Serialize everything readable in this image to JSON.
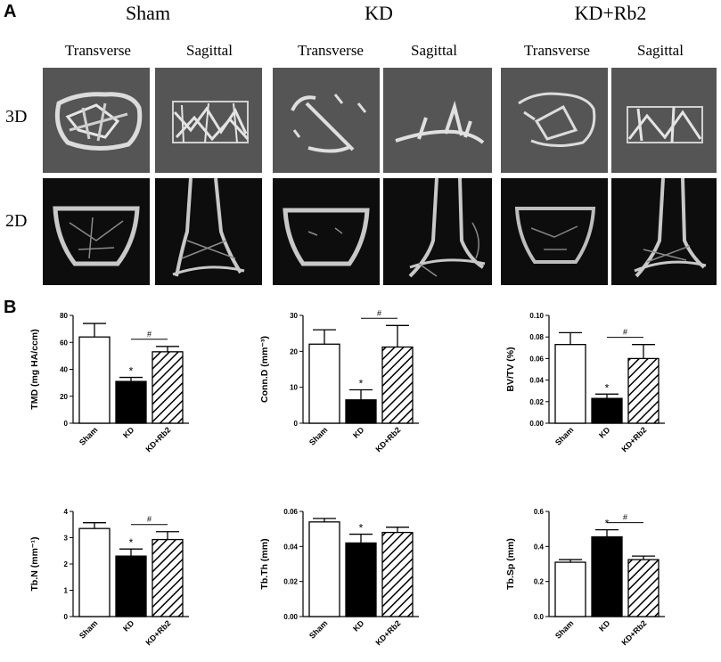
{
  "panel_a": {
    "letter": "A",
    "groups": [
      {
        "title": "Sham",
        "views": [
          "Transverse",
          "Sagittal"
        ]
      },
      {
        "title": "KD",
        "views": [
          "Transverse",
          "Sagittal"
        ]
      },
      {
        "title": "KD+Rb2",
        "views": [
          "Transverse",
          "Sagittal"
        ]
      }
    ],
    "row_labels": [
      "3D",
      "2D"
    ]
  },
  "panel_b": {
    "letter": "B"
  },
  "chart_data": [
    {
      "type": "bar",
      "categories": [
        "Sham",
        "KD",
        "KD+Rb2"
      ],
      "values": [
        64,
        31,
        53
      ],
      "errors": [
        10,
        3,
        4
      ],
      "ylabel": "TMD (mg HA/ccm)",
      "ylim": [
        0,
        80
      ],
      "yticks": [
        "0",
        "20",
        "40",
        "60",
        "80"
      ],
      "annotations": [
        {
          "text": "*",
          "category": "KD"
        },
        {
          "text": "#",
          "between": [
            "KD",
            "KD+Rb2"
          ]
        }
      ]
    },
    {
      "type": "bar",
      "categories": [
        "Sham",
        "KD",
        "KD+Rb2"
      ],
      "values": [
        22,
        6.5,
        21.2
      ],
      "errors": [
        4,
        2.8,
        6
      ],
      "ylabel": "Conn.D (mm⁻³)",
      "ylim": [
        0,
        30
      ],
      "yticks": [
        "0",
        "10",
        "20",
        "30"
      ],
      "annotations": [
        {
          "text": "*",
          "category": "KD"
        },
        {
          "text": "#",
          "between": [
            "KD",
            "KD+Rb2"
          ]
        }
      ]
    },
    {
      "type": "bar",
      "categories": [
        "Sham",
        "KD",
        "KD+Rb2"
      ],
      "values": [
        0.073,
        0.023,
        0.06
      ],
      "errors": [
        0.011,
        0.004,
        0.013
      ],
      "ylabel": "BV/TV (%)",
      "ylim": [
        0,
        0.1
      ],
      "yticks": [
        "0.00",
        "0.02",
        "0.04",
        "0.06",
        "0.08",
        "0.10"
      ],
      "annotations": [
        {
          "text": "*",
          "category": "KD"
        },
        {
          "text": "#",
          "between": [
            "KD",
            "KD+Rb2"
          ]
        }
      ]
    },
    {
      "type": "bar",
      "categories": [
        "Sham",
        "KD",
        "KD+Rb2"
      ],
      "values": [
        3.35,
        2.3,
        2.93
      ],
      "errors": [
        0.22,
        0.27,
        0.3
      ],
      "ylabel": "Tb.N (mm⁻¹)",
      "ylim": [
        0,
        4
      ],
      "yticks": [
        "0",
        "1",
        "2",
        "3",
        "4"
      ],
      "annotations": [
        {
          "text": "*",
          "category": "KD"
        },
        {
          "text": "#",
          "between": [
            "KD",
            "KD+Rb2"
          ]
        }
      ]
    },
    {
      "type": "bar",
      "categories": [
        "Sham",
        "KD",
        "KD+Rb2"
      ],
      "values": [
        0.054,
        0.042,
        0.048
      ],
      "errors": [
        0.002,
        0.005,
        0.003
      ],
      "ylabel": "Tb.Th (mm)",
      "ylim": [
        0,
        0.06
      ],
      "yticks": [
        "0.00",
        "0.02",
        "0.04",
        "0.06"
      ],
      "annotations": [
        {
          "text": "*",
          "category": "KD"
        }
      ]
    },
    {
      "type": "bar",
      "categories": [
        "Sham",
        "KD",
        "KD+Rb2"
      ],
      "values": [
        0.31,
        0.455,
        0.325
      ],
      "errors": [
        0.015,
        0.04,
        0.02
      ],
      "ylabel": "Tb.Sp (mm)",
      "ylim": [
        0,
        0.6
      ],
      "yticks": [
        "0.0",
        "0.2",
        "0.4",
        "0.6"
      ],
      "annotations": [
        {
          "text": "*",
          "category": "KD"
        },
        {
          "text": "#",
          "between": [
            "KD",
            "KD+Rb2"
          ]
        }
      ]
    }
  ]
}
